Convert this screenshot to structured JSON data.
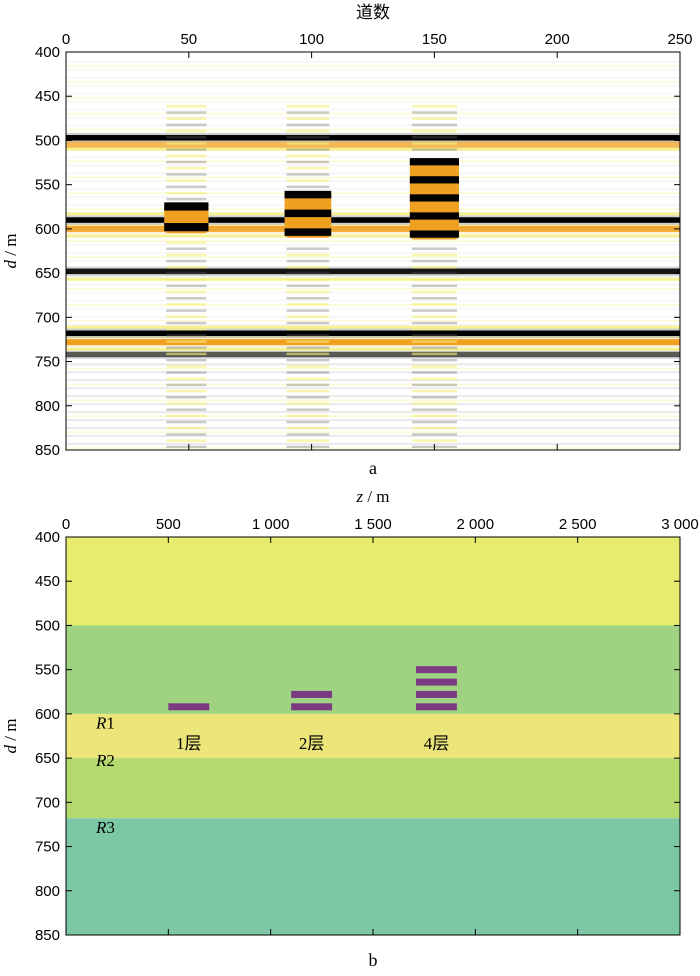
{
  "chart_data": [
    {
      "id": "panel-a",
      "type": "heatmap",
      "title": "",
      "panel_label": "a",
      "xlabel": "道数",
      "ylabel_italic": "d",
      "ylabel_unit": " / m",
      "xlim": [
        0,
        250
      ],
      "ylim": [
        400,
        850
      ],
      "x_ticks": [
        0,
        50,
        100,
        150,
        200,
        250
      ],
      "x_tick_labels": [
        "0",
        "50",
        "100",
        "150",
        "200",
        "250"
      ],
      "y_ticks": [
        400,
        450,
        500,
        550,
        600,
        650,
        700,
        750,
        800,
        850
      ],
      "y_tick_labels": [
        "400",
        "450",
        "500",
        "550",
        "600",
        "650",
        "700",
        "750",
        "800",
        "850"
      ],
      "colors": {
        "negative": "#000000",
        "positive": "#f0a020",
        "weak": "#f5f07a",
        "background": "#ffffff"
      },
      "reflectors": [
        {
          "depth": 497,
          "polarity": "negative",
          "strength": 1.0
        },
        {
          "depth": 505,
          "polarity": "positive",
          "strength": 0.7
        },
        {
          "depth": 590,
          "polarity": "negative",
          "strength": 1.0
        },
        {
          "depth": 600,
          "polarity": "positive",
          "strength": 0.9
        },
        {
          "depth": 648,
          "polarity": "negative",
          "strength": 0.9
        },
        {
          "depth": 718,
          "polarity": "negative",
          "strength": 1.0
        },
        {
          "depth": 728,
          "polarity": "positive",
          "strength": 1.0
        },
        {
          "depth": 742,
          "polarity": "negative",
          "strength": 0.6
        }
      ],
      "anomalies": [
        {
          "trace_start": 40,
          "trace_end": 58,
          "top_depth": 570,
          "bottom_depth": 605,
          "layers": 1
        },
        {
          "trace_start": 89,
          "trace_end": 108,
          "top_depth": 557,
          "bottom_depth": 610,
          "layers": 2
        },
        {
          "trace_start": 140,
          "trace_end": 160,
          "top_depth": 520,
          "bottom_depth": 612,
          "layers": 4
        }
      ]
    },
    {
      "id": "panel-b",
      "type": "area",
      "title": "",
      "panel_label": "b",
      "xlabel_italic": "z",
      "xlabel_unit": " / m",
      "ylabel_italic": "d",
      "ylabel_unit": " / m",
      "xlim": [
        0,
        3000
      ],
      "ylim": [
        400,
        850
      ],
      "x_ticks": [
        0,
        500,
        1000,
        1500,
        2000,
        2500,
        3000
      ],
      "x_tick_labels": [
        "0",
        "500",
        "1 000",
        "1 500",
        "2 000",
        "2 500",
        "3 000"
      ],
      "y_ticks": [
        400,
        450,
        500,
        550,
        600,
        650,
        700,
        750,
        800,
        850
      ],
      "y_tick_labels": [
        "400",
        "450",
        "500",
        "550",
        "600",
        "650",
        "700",
        "750",
        "800",
        "850"
      ],
      "strata": [
        {
          "top": 400,
          "bottom": 500,
          "color": "#e7ec6f"
        },
        {
          "top": 500,
          "bottom": 600,
          "color": "#9fd382"
        },
        {
          "top": 600,
          "bottom": 650,
          "color": "#ece57a"
        },
        {
          "top": 650,
          "bottom": 718,
          "color": "#b4d96f"
        },
        {
          "top": 718,
          "bottom": 850,
          "color": "#7cc8a4"
        }
      ],
      "reflector_labels": [
        {
          "italic": "R",
          "num": "1",
          "depth": 610
        },
        {
          "italic": "R",
          "num": "2",
          "depth": 652
        },
        {
          "italic": "R",
          "num": "3",
          "depth": 728
        }
      ],
      "thin_layers": [
        {
          "x_start": 500,
          "x_end": 700,
          "depths": [
            592
          ],
          "label": "1层",
          "label_x": 600,
          "label_depth": 624
        },
        {
          "x_start": 1100,
          "x_end": 1300,
          "depths": [
            578,
            592
          ],
          "label": "2层",
          "label_x": 1200,
          "label_depth": 624
        },
        {
          "x_start": 1710,
          "x_end": 1910,
          "depths": [
            550,
            564,
            578,
            592
          ],
          "label": "4层",
          "label_x": 1810,
          "label_depth": 624
        }
      ],
      "thin_layer_color": "#7b3b82"
    }
  ]
}
